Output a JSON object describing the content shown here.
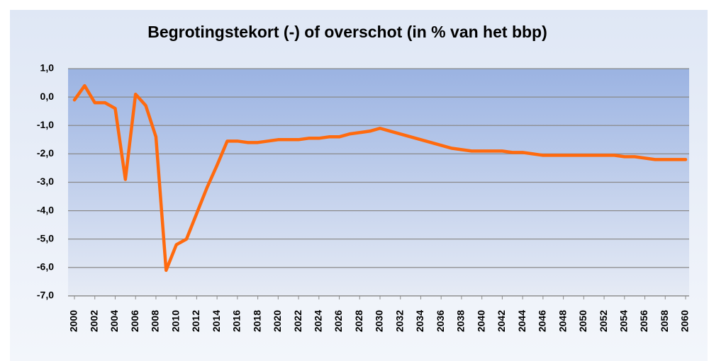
{
  "chart_data": {
    "type": "line",
    "title": "Begrotingstekort (-) of overschot  (in % van het bbp)",
    "x": [
      2000,
      2001,
      2002,
      2003,
      2004,
      2005,
      2006,
      2007,
      2008,
      2009,
      2010,
      2011,
      2012,
      2013,
      2014,
      2015,
      2016,
      2017,
      2018,
      2019,
      2020,
      2021,
      2022,
      2023,
      2024,
      2025,
      2026,
      2027,
      2028,
      2029,
      2030,
      2031,
      2032,
      2033,
      2034,
      2035,
      2036,
      2037,
      2038,
      2039,
      2040,
      2041,
      2042,
      2043,
      2044,
      2045,
      2046,
      2047,
      2048,
      2049,
      2050,
      2051,
      2052,
      2053,
      2054,
      2055,
      2056,
      2057,
      2058,
      2059,
      2060
    ],
    "values": [
      -0.1,
      0.4,
      -0.2,
      -0.2,
      -0.4,
      -2.9,
      0.1,
      -0.3,
      -1.4,
      -6.1,
      -5.2,
      -5.0,
      -4.1,
      -3.2,
      -2.4,
      -1.55,
      -1.55,
      -1.6,
      -1.6,
      -1.55,
      -1.5,
      -1.5,
      -1.5,
      -1.45,
      -1.45,
      -1.4,
      -1.4,
      -1.3,
      -1.25,
      -1.2,
      -1.1,
      -1.2,
      -1.3,
      -1.4,
      -1.5,
      -1.6,
      -1.7,
      -1.8,
      -1.85,
      -1.9,
      -1.9,
      -1.9,
      -1.9,
      -1.95,
      -1.95,
      -2.0,
      -2.05,
      -2.05,
      -2.05,
      -2.05,
      -2.05,
      -2.05,
      -2.05,
      -2.05,
      -2.1,
      -2.1,
      -2.15,
      -2.2,
      -2.2,
      -2.2,
      -2.2
    ],
    "color": "#ff6a0e",
    "xlim": [
      2000,
      2060
    ],
    "xticks": [
      2000,
      2002,
      2004,
      2006,
      2008,
      2010,
      2012,
      2014,
      2016,
      2018,
      2020,
      2022,
      2024,
      2026,
      2028,
      2030,
      2032,
      2034,
      2036,
      2038,
      2040,
      2042,
      2044,
      2046,
      2048,
      2050,
      2052,
      2054,
      2056,
      2058,
      2060
    ],
    "ylim": [
      -7.0,
      1.0
    ],
    "yticks": [
      {
        "value": 1.0,
        "label": "1,0"
      },
      {
        "value": 0.0,
        "label": "0,0"
      },
      {
        "value": -1.0,
        "label": "-1,0"
      },
      {
        "value": -2.0,
        "label": "-2,0"
      },
      {
        "value": -3.0,
        "label": "-3,0"
      },
      {
        "value": -4.0,
        "label": "-4,0"
      },
      {
        "value": -5.0,
        "label": "-5,0"
      },
      {
        "value": -6.0,
        "label": "-6,0"
      },
      {
        "value": -7.0,
        "label": "-7,0"
      }
    ],
    "grid": true
  }
}
